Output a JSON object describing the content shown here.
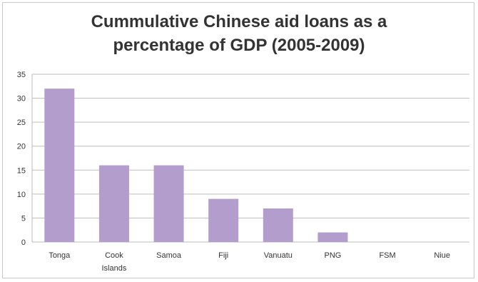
{
  "chart_data": {
    "type": "bar",
    "title_lines": [
      "Cummulative Chinese aid loans as a",
      "percentage of GDP (2005-2009)"
    ],
    "categories": [
      [
        "Tonga"
      ],
      [
        "Cook",
        "Islands"
      ],
      [
        "Samoa"
      ],
      [
        "Fiji"
      ],
      [
        "Vanuatu"
      ],
      [
        "PNG"
      ],
      [
        "FSM"
      ],
      [
        "Niue"
      ]
    ],
    "values": [
      32,
      16,
      16,
      9,
      7,
      2,
      0,
      0
    ],
    "ylim": [
      0,
      35
    ],
    "yticks": [
      0,
      5,
      10,
      15,
      20,
      25,
      30,
      35
    ],
    "grid": true,
    "legend": "none",
    "bar_color": "#b29dcc",
    "grid_color": "#bdbdbd"
  }
}
